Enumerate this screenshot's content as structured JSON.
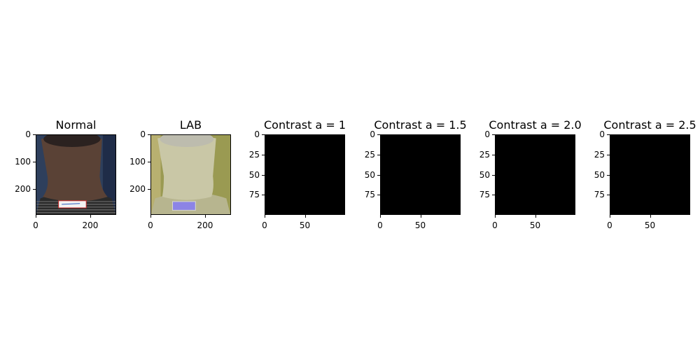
{
  "chart_data": [
    {
      "type": "image",
      "title": "Normal",
      "image_extent": {
        "x": [
          0,
          295
        ],
        "y": [
          0,
          295
        ]
      },
      "xticks": [
        "0",
        "200"
      ],
      "yticks": [
        "0",
        "100",
        "200"
      ],
      "content": "photo-neck-back",
      "colors": {
        "background": "#2e3f5c",
        "skin": "#5a4236",
        "shirt": "#2a2a2a"
      }
    },
    {
      "type": "image",
      "title": "LAB",
      "image_extent": {
        "x": [
          0,
          295
        ],
        "y": [
          0,
          295
        ]
      },
      "xticks": [
        "0",
        "200"
      ],
      "yticks": [
        "0",
        "100",
        "200"
      ],
      "content": "lab-converted-photo",
      "colors": {
        "background": "#9a9a52",
        "skin": "#c9c7a6",
        "tag": "#8c84e6"
      }
    },
    {
      "type": "image",
      "title": "Contrast a = 1",
      "image_extent": {
        "x": [
          0,
          100
        ],
        "y": [
          0,
          100
        ]
      },
      "xticks": [
        "0",
        "50"
      ],
      "yticks": [
        "0",
        "25",
        "50",
        "75"
      ],
      "content": "black",
      "colors": {
        "fill": "#000000"
      }
    },
    {
      "type": "image",
      "title": "Contrast a = 1.5",
      "image_extent": {
        "x": [
          0,
          100
        ],
        "y": [
          0,
          100
        ]
      },
      "xticks": [
        "0",
        "50"
      ],
      "yticks": [
        "0",
        "25",
        "50",
        "75"
      ],
      "content": "black",
      "colors": {
        "fill": "#000000"
      }
    },
    {
      "type": "image",
      "title": "Contrast a = 2.0",
      "image_extent": {
        "x": [
          0,
          100
        ],
        "y": [
          0,
          100
        ]
      },
      "xticks": [
        "0",
        "50"
      ],
      "yticks": [
        "0",
        "25",
        "50",
        "75"
      ],
      "content": "black",
      "colors": {
        "fill": "#000000"
      }
    },
    {
      "type": "image",
      "title": "Contrast a = 2.5",
      "image_extent": {
        "x": [
          0,
          100
        ],
        "y": [
          0,
          100
        ]
      },
      "xticks": [
        "0",
        "50"
      ],
      "yticks": [
        "0",
        "25",
        "50",
        "75"
      ],
      "content": "black",
      "colors": {
        "fill": "#000000"
      }
    }
  ]
}
